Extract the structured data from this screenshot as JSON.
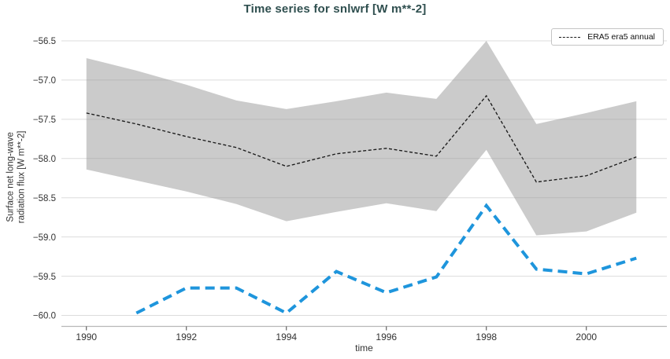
{
  "title": "Time series for snlwrf [W m**-2]",
  "colors": {
    "title": "#2f4f4f",
    "band": "#cbcbcb",
    "grid": "#9a9a9a",
    "spine": "#b8b8b8",
    "tick_mark": "#444444",
    "tick_text": "#333333",
    "era5_line": "#1a1a1a",
    "blue_line": "#1e95dc",
    "legend_border": "#c4c4c4"
  },
  "chart_data": {
    "type": "line",
    "title": "Time series for snlwrf [W m**-2]",
    "xlabel": "time",
    "ylabel": "Surface net long-wave radiation flux [W m**-2]",
    "ylabel_lines": [
      "Surface net long-wave",
      "radiation flux [W m**-2]"
    ],
    "xlim": [
      1989.5,
      2001.61
    ],
    "ylim": [
      -60.14,
      -56.38
    ],
    "x_ticks": [
      1990,
      1992,
      1994,
      1996,
      1998,
      2000
    ],
    "y_ticks": [
      -56.5,
      -57.0,
      -57.5,
      -58.0,
      -58.5,
      -59.0,
      -59.5,
      -60.0
    ],
    "grid": "horizontal",
    "legend": {
      "position": "upper right",
      "entries": [
        "ERA5 era5 annual"
      ]
    },
    "band": {
      "x": [
        1990,
        1991,
        1992,
        1993,
        1994,
        1995,
        1996,
        1997,
        1998,
        1999,
        2000,
        2001
      ],
      "upper": [
        -56.72,
        -56.88,
        -57.06,
        -57.26,
        -57.37,
        -57.27,
        -57.16,
        -57.24,
        -56.5,
        -57.56,
        -57.42,
        -57.27
      ],
      "lower": [
        -58.14,
        -58.28,
        -58.42,
        -58.58,
        -58.8,
        -58.68,
        -58.57,
        -58.67,
        -57.89,
        -58.98,
        -58.93,
        -58.69
      ],
      "color": "#cbcbcb"
    },
    "series": [
      {
        "name": "ERA5 era5 annual",
        "color": "#1a1a1a",
        "dash": "4 2.6",
        "width": 1.35,
        "x": [
          1990,
          1991,
          1992,
          1993,
          1994,
          1995,
          1996,
          1997,
          1998,
          1999,
          2000,
          2001
        ],
        "values": [
          -57.42,
          -57.56,
          -57.72,
          -57.86,
          -58.1,
          -57.94,
          -57.87,
          -57.97,
          -57.2,
          -58.3,
          -58.22,
          -57.98
        ]
      },
      {
        "name": "",
        "color": "#1e95dc",
        "dash": "12 7",
        "width": 4,
        "x": [
          1991,
          1992,
          1993,
          1994,
          1995,
          1996,
          1997,
          1998,
          1999,
          2000,
          2001
        ],
        "values": [
          -59.97,
          -59.65,
          -59.65,
          -59.97,
          -59.44,
          -59.71,
          -59.51,
          -58.6,
          -59.41,
          -59.47,
          -59.27
        ]
      }
    ]
  }
}
